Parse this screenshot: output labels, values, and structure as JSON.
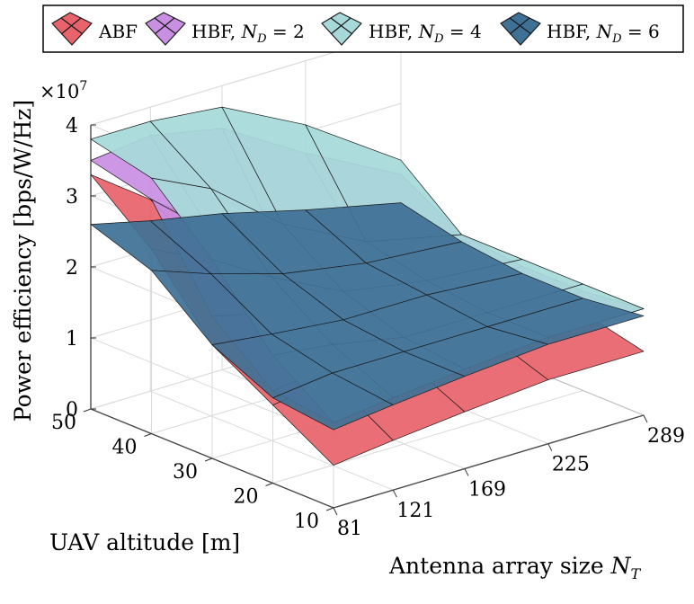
{
  "chart_data": {
    "type": "surface3d",
    "title": "",
    "xlabel": "Antenna array size N_T",
    "xlabel_main": "Antenna array size ",
    "xlabel_sym": "N",
    "xlabel_sub": "T",
    "ylabel": "UAV altitude [m]",
    "zlabel": "Power efficiency [bps/W/Hz]",
    "zscale": "×10",
    "zscale_base": "×10",
    "zscale_exp": "7",
    "x_ticks": [
      "81",
      "121",
      "169",
      "225",
      "289"
    ],
    "y_ticks": [
      "10",
      "20",
      "30",
      "40",
      "50"
    ],
    "z_ticks": [
      "0",
      "1",
      "2",
      "3",
      "4"
    ],
    "xlim": [
      81,
      289
    ],
    "ylim": [
      10,
      50
    ],
    "zlim": [
      0,
      4
    ],
    "grid": true,
    "legend_position": "top",
    "legend": [
      {
        "label": "ABF",
        "sym": "",
        "sub": "",
        "tail": "",
        "color": "#e8636b"
      },
      {
        "label": "HBF, ",
        "sym": "N",
        "sub": "D",
        "tail": " = 2",
        "color": "#c98fe3"
      },
      {
        "label": "HBF, ",
        "sym": "N",
        "sub": "D",
        "tail": " = 4",
        "color": "#a7d9da"
      },
      {
        "label": "HBF, ",
        "sym": "N",
        "sub": "D",
        "tail": " = 6",
        "color": "#3f7196"
      }
    ],
    "x_values": [
      81,
      121,
      169,
      225,
      289
    ],
    "y_values": [
      10,
      20,
      30,
      40,
      50
    ],
    "series": [
      {
        "name": "ABF",
        "color": "#e8636b",
        "z": [
          [
            0.6,
            0.7,
            0.8,
            0.9,
            0.9
          ],
          [
            1.1,
            1.2,
            1.2,
            1.2,
            1.1
          ],
          [
            1.6,
            1.5,
            1.4,
            1.3,
            1.2
          ],
          [
            2.6,
            2.2,
            1.8,
            1.5,
            1.3
          ],
          [
            3.3,
            2.7,
            2.0,
            1.6,
            1.3
          ]
        ]
      },
      {
        "name": "HBF, N_D = 2",
        "color": "#c98fe3",
        "z": [
          [
            1.2,
            1.3,
            1.4,
            1.5,
            1.5
          ],
          [
            1.3,
            1.4,
            1.4,
            1.4,
            1.4
          ],
          [
            2.0,
            1.8,
            1.6,
            1.5,
            1.4
          ],
          [
            3.3,
            2.6,
            2.0,
            1.6,
            1.5
          ],
          [
            3.5,
            3.6,
            3.4,
            2.7,
            2.0
          ]
        ]
      },
      {
        "name": "HBF, N_D = 4",
        "color": "#a7d9da",
        "z": [
          [
            1.2,
            1.3,
            1.4,
            1.5,
            1.5
          ],
          [
            1.8,
            1.7,
            1.5,
            1.5,
            1.5
          ],
          [
            2.8,
            2.3,
            1.8,
            1.6,
            1.5
          ],
          [
            3.6,
            3.2,
            2.4,
            1.8,
            1.5
          ],
          [
            3.8,
            3.8,
            3.7,
            3.1,
            2.2
          ]
        ]
      },
      {
        "name": "HBF, N_D = 6",
        "color": "#3f7196",
        "z": [
          [
            1.1,
            1.2,
            1.3,
            1.4,
            1.4
          ],
          [
            1.2,
            1.3,
            1.3,
            1.3,
            1.3
          ],
          [
            1.6,
            1.5,
            1.4,
            1.4,
            1.3
          ],
          [
            2.3,
            2.0,
            1.7,
            1.5,
            1.4
          ],
          [
            2.6,
            2.4,
            2.2,
            1.9,
            1.6
          ]
        ]
      }
    ]
  }
}
